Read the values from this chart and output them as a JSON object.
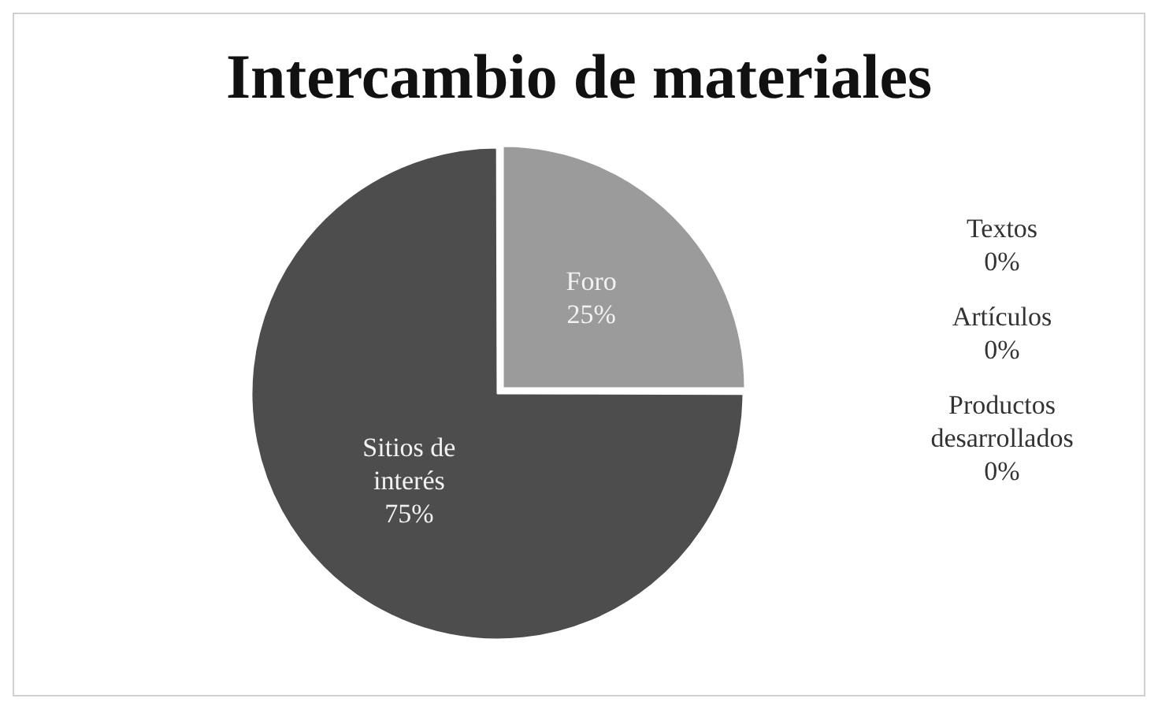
{
  "chart_data": {
    "type": "pie",
    "title": "Intercambio de materiales",
    "categories": [
      "Foro",
      "Textos",
      "Artículos",
      "Productos desarrollados",
      "Sitios de interés"
    ],
    "values": [
      25,
      0,
      0,
      0,
      75
    ],
    "value_labels": [
      "25%",
      "0%",
      "0%",
      "0%",
      "75%"
    ],
    "colors": [
      "#9b9b9b",
      "#3b3b3b",
      "#5f5270",
      "#7a7a7a",
      "#4d4d4d"
    ]
  }
}
